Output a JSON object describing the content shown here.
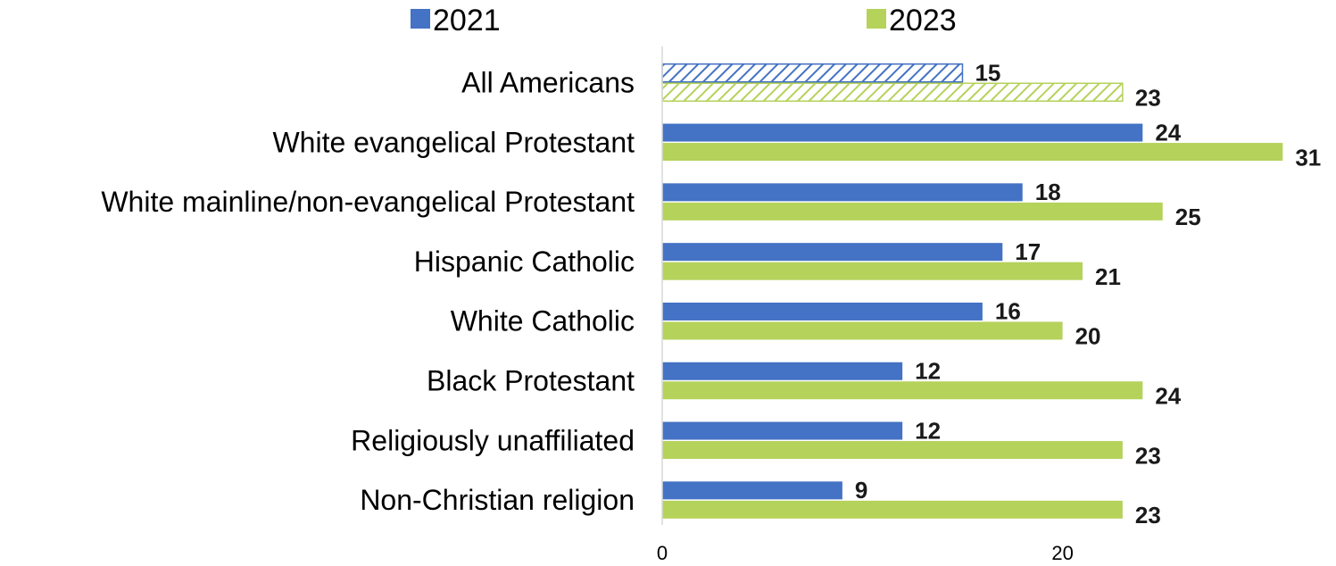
{
  "chart_data": {
    "type": "bar",
    "orientation": "horizontal",
    "categories": [
      "All Americans",
      "White evangelical Protestant",
      "White mainline/non-evangelical Protestant",
      "Hispanic Catholic",
      "White Catholic",
      "Black Protestant",
      "Religiously unaffiliated",
      "Non-Christian religion"
    ],
    "series": [
      {
        "name": "2021",
        "color": "#4472c4",
        "values": [
          15,
          24,
          18,
          17,
          16,
          12,
          12,
          9
        ]
      },
      {
        "name": "2023",
        "color": "#b5d25a",
        "values": [
          23,
          31,
          25,
          21,
          20,
          24,
          23,
          23
        ]
      }
    ],
    "highlighted_category": "All Americans",
    "highlight_style": "hatched",
    "xlim": [
      0,
      32
    ],
    "xticks": [
      0,
      20
    ],
    "xlabel": "",
    "ylabel": "",
    "title": "",
    "grid": false,
    "legend_position": "top",
    "data_labels": true
  }
}
